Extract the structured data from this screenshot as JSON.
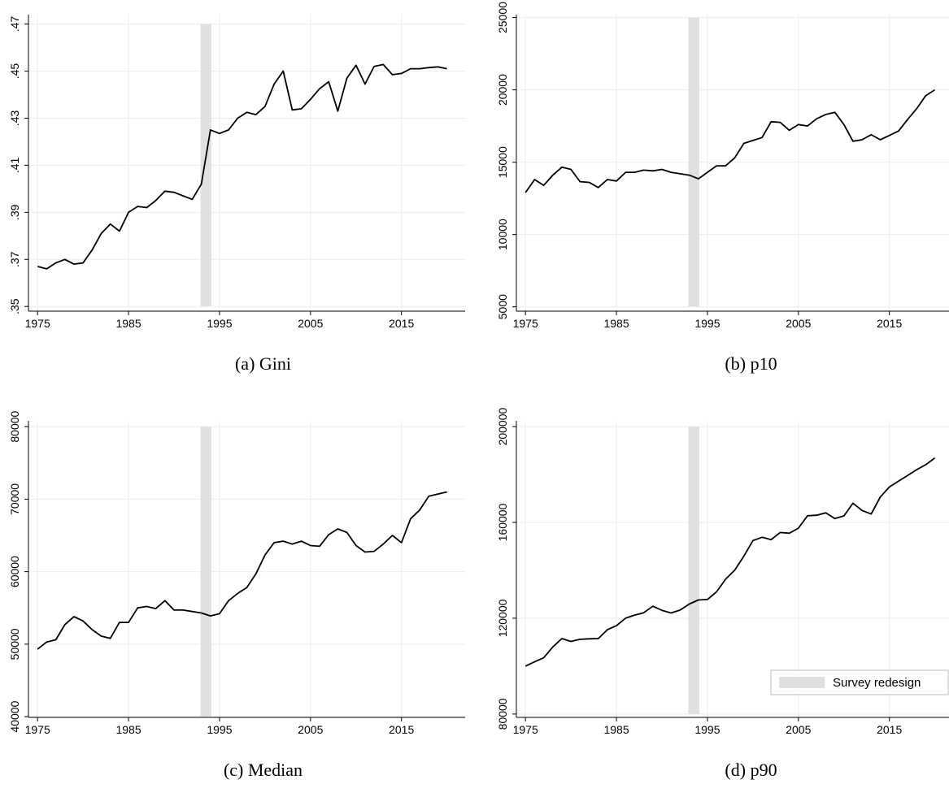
{
  "chart_data": [
    {
      "type": "line",
      "title": "(a) Gini",
      "color": "#000000",
      "grid": true,
      "x": [
        1975,
        1976,
        1977,
        1978,
        1979,
        1980,
        1981,
        1982,
        1983,
        1984,
        1985,
        1986,
        1987,
        1988,
        1989,
        1990,
        1991,
        1992,
        1993,
        1994,
        1995,
        1996,
        1997,
        1998,
        1999,
        2000,
        2001,
        2002,
        2003,
        2004,
        2005,
        2006,
        2007,
        2008,
        2009,
        2010,
        2011,
        2012,
        2013,
        2014,
        2015,
        2016,
        2017,
        2018,
        2019,
        2020
      ],
      "values": [
        0.367,
        0.366,
        0.3685,
        0.37,
        0.368,
        0.3685,
        0.374,
        0.381,
        0.385,
        0.382,
        0.39,
        0.3925,
        0.392,
        0.395,
        0.399,
        0.3985,
        0.397,
        0.3955,
        0.402,
        0.425,
        0.4235,
        0.425,
        0.43,
        0.4325,
        0.4315,
        0.435,
        0.4445,
        0.45,
        0.4335,
        0.434,
        0.438,
        0.4425,
        0.4455,
        0.433,
        0.447,
        0.4525,
        0.4445,
        0.452,
        0.4528,
        0.4485,
        0.449,
        0.451,
        0.451,
        0.4515,
        0.4518,
        0.451
      ],
      "xlim": [
        1974,
        2022
      ],
      "xticks": [
        1975,
        1985,
        1995,
        2005,
        2015
      ],
      "ylim": [
        0.348,
        0.474
      ],
      "yticks": [
        {
          "value": 0.35,
          "label": ".35"
        },
        {
          "value": 0.37,
          "label": ".37"
        },
        {
          "value": 0.39,
          "label": ".39"
        },
        {
          "value": 0.41,
          "label": ".41"
        },
        {
          "value": 0.43,
          "label": ".43"
        },
        {
          "value": 0.45,
          "label": ".45"
        },
        {
          "value": 0.47,
          "label": ".47"
        }
      ],
      "shade": {
        "x": [
          1992.9,
          1994.1
        ],
        "color": "#e0e0e0"
      }
    },
    {
      "type": "line",
      "title": "(b) p10",
      "color": "#000000",
      "grid": true,
      "x": [
        1975,
        1976,
        1977,
        1978,
        1979,
        1980,
        1981,
        1982,
        1983,
        1984,
        1985,
        1986,
        1987,
        1988,
        1989,
        1990,
        1991,
        1992,
        1993,
        1994,
        1995,
        1996,
        1997,
        1998,
        1999,
        2000,
        2001,
        2002,
        2003,
        2004,
        2005,
        2006,
        2007,
        2008,
        2009,
        2010,
        2011,
        2012,
        2013,
        2014,
        2015,
        2016,
        2017,
        2018,
        2019,
        2020
      ],
      "values": [
        12900,
        13800,
        13400,
        14100,
        14650,
        14500,
        13650,
        13600,
        13250,
        13800,
        13700,
        14300,
        14300,
        14450,
        14400,
        14500,
        14300,
        14200,
        14100,
        13850,
        14300,
        14750,
        14750,
        15300,
        16300,
        16500,
        16700,
        17800,
        17750,
        17200,
        17600,
        17500,
        18000,
        18300,
        18450,
        17600,
        16450,
        16550,
        16900,
        16550,
        16850,
        17150,
        17950,
        18700,
        19600,
        20000
      ],
      "xlim": [
        1974,
        2022
      ],
      "xticks": [
        1975,
        1985,
        1995,
        2005,
        2015
      ],
      "ylim": [
        4700,
        25200
      ],
      "yticks": [
        5000,
        10000,
        15000,
        20000,
        25000
      ],
      "shade": {
        "x": [
          1992.9,
          1994.1
        ],
        "color": "#e0e0e0"
      }
    },
    {
      "type": "line",
      "title": "(c) Median",
      "color": "#000000",
      "grid": true,
      "x": [
        1975,
        1976,
        1977,
        1978,
        1979,
        1980,
        1981,
        1982,
        1983,
        1984,
        1985,
        1986,
        1987,
        1988,
        1989,
        1990,
        1991,
        1992,
        1993,
        1994,
        1995,
        1996,
        1997,
        1998,
        1999,
        2000,
        2001,
        2002,
        2003,
        2004,
        2005,
        2006,
        2007,
        2008,
        2009,
        2010,
        2011,
        2012,
        2013,
        2014,
        2015,
        2016,
        2017,
        2018,
        2019,
        2020
      ],
      "values": [
        49300,
        50300,
        50600,
        52700,
        53800,
        53200,
        52000,
        51100,
        50800,
        53000,
        53000,
        55000,
        55200,
        54900,
        56000,
        54700,
        54700,
        54500,
        54300,
        53900,
        54200,
        56000,
        57000,
        57800,
        59700,
        62300,
        64000,
        64200,
        63800,
        64200,
        63600,
        63500,
        65100,
        65900,
        65400,
        63600,
        62700,
        62800,
        63800,
        65000,
        64000,
        67300,
        68500,
        70400,
        70700,
        71000
      ],
      "xlim": [
        1974,
        2022
      ],
      "xticks": [
        1975,
        1985,
        1995,
        2005,
        2015
      ],
      "ylim": [
        39900,
        80800
      ],
      "yticks": [
        40000,
        50000,
        60000,
        70000,
        80000
      ],
      "shade": {
        "x": [
          1992.9,
          1994.1
        ],
        "color": "#e0e0e0"
      }
    },
    {
      "type": "line",
      "title": "(d) p90",
      "color": "#000000",
      "grid": true,
      "legend": "lower right",
      "x": [
        1975,
        1976,
        1977,
        1978,
        1979,
        1980,
        1981,
        1982,
        1983,
        1984,
        1985,
        1986,
        1987,
        1988,
        1989,
        1990,
        1991,
        1992,
        1993,
        1994,
        1995,
        1996,
        1997,
        1998,
        1999,
        2000,
        2001,
        2002,
        2003,
        2004,
        2005,
        2006,
        2007,
        2008,
        2009,
        2010,
        2011,
        2012,
        2013,
        2014,
        2015,
        2016,
        2017,
        2018,
        2019,
        2020
      ],
      "values": [
        100000,
        101800,
        103500,
        108000,
        111500,
        110300,
        111200,
        111400,
        111500,
        115200,
        116900,
        120000,
        121300,
        122300,
        125000,
        123300,
        122200,
        123400,
        125900,
        127600,
        127800,
        131000,
        136300,
        140100,
        145900,
        152400,
        153800,
        152800,
        155800,
        155500,
        157600,
        162800,
        163000,
        164000,
        161600,
        162700,
        168000,
        165000,
        163500,
        170600,
        174800,
        177200,
        179600,
        182000,
        184100,
        186900
      ],
      "xlim": [
        1974,
        2022
      ],
      "xticks": [
        1975,
        1985,
        1995,
        2005,
        2015
      ],
      "ylim": [
        78600,
        202400
      ],
      "yticks": [
        80000,
        120000,
        160000,
        200000
      ],
      "shade": {
        "name": "Survey redesign",
        "x": [
          1992.9,
          1994.1
        ],
        "color": "#e0e0e0"
      }
    }
  ]
}
